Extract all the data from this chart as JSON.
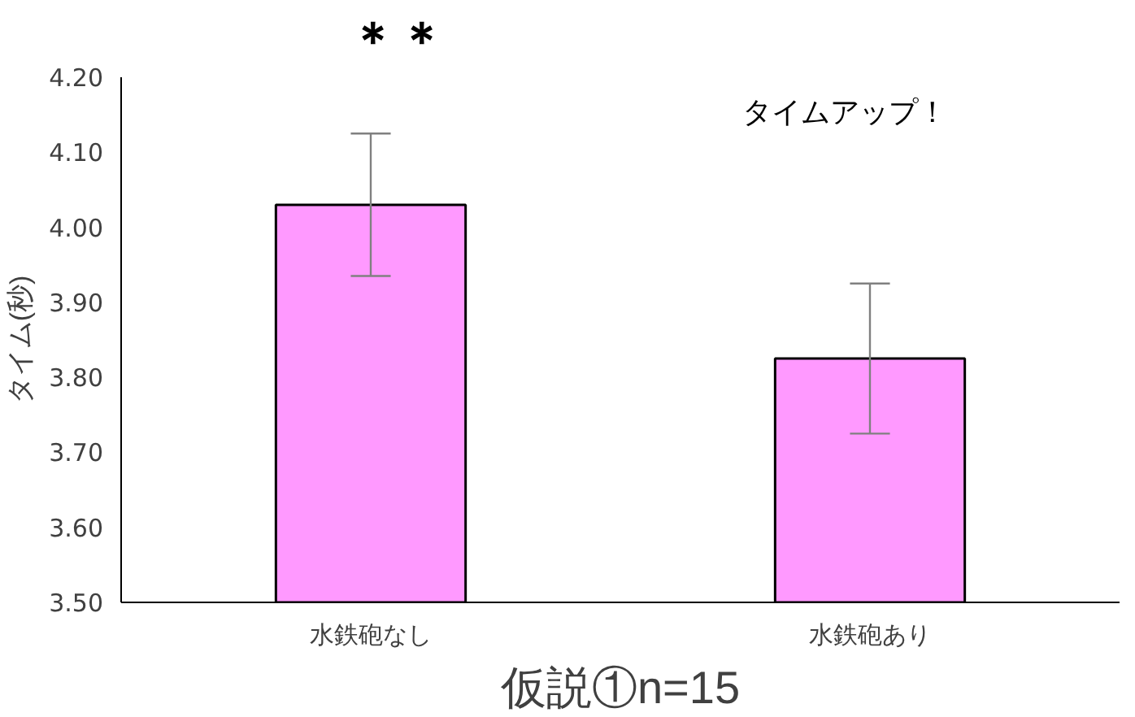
{
  "chart_data": {
    "type": "bar",
    "xlabel": "仮説①n=15",
    "ylabel": "タイム(秒)",
    "categories": [
      "水鉄砲なし",
      "水鉄砲あり"
    ],
    "values": [
      4.03,
      3.825
    ],
    "errors": [
      0.095,
      0.1
    ],
    "color": "#ff99ff",
    "ylim": [
      3.5,
      4.2
    ],
    "yticks": [
      {
        "value": 3.5,
        "label": "3.50"
      },
      {
        "value": 3.6,
        "label": "3.60"
      },
      {
        "value": 3.7,
        "label": "3.70"
      },
      {
        "value": 3.8,
        "label": "3.80"
      },
      {
        "value": 3.9,
        "label": "3.90"
      },
      {
        "value": 4.0,
        "label": "4.00"
      },
      {
        "value": 4.1,
        "label": "4.10"
      },
      {
        "value": 4.2,
        "label": "4.20"
      }
    ],
    "grid": false,
    "annotations": [
      "＊＊",
      "タイムアップ！"
    ]
  }
}
